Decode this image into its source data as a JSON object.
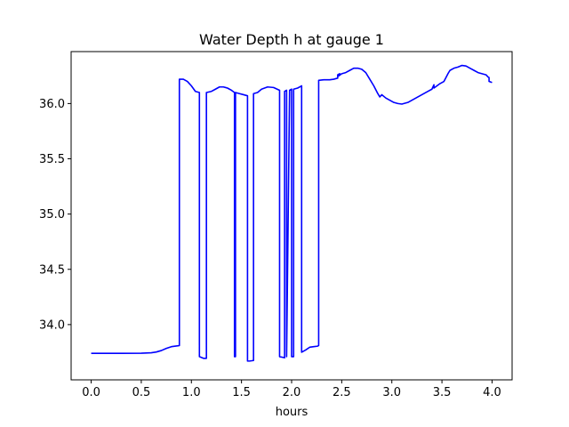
{
  "chart_data": {
    "type": "line",
    "title": "Water Depth h at gauge 1",
    "xlabel": "hours",
    "ylabel": "",
    "xlim": [
      -0.2,
      4.2
    ],
    "ylim": [
      33.5,
      36.47
    ],
    "xticks": [
      0.0,
      0.5,
      1.0,
      1.5,
      2.0,
      2.5,
      3.0,
      3.5,
      4.0
    ],
    "xtick_labels": [
      "0.0",
      "0.5",
      "1.0",
      "1.5",
      "2.0",
      "2.5",
      "3.0",
      "3.5",
      "4.0"
    ],
    "yticks": [
      34.0,
      34.5,
      35.0,
      35.5,
      36.0
    ],
    "ytick_labels": [
      "34.0",
      "34.5",
      "35.0",
      "35.5",
      "36.0"
    ],
    "grid": false,
    "series": [
      {
        "color": "#0000ff",
        "x": [
          0.0,
          0.3,
          0.5,
          0.6,
          0.65,
          0.7,
          0.75,
          0.8,
          0.85,
          0.88,
          0.88,
          0.92,
          0.96,
          1.0,
          1.04,
          1.08,
          1.08,
          1.12,
          1.15,
          1.15,
          1.2,
          1.24,
          1.28,
          1.32,
          1.36,
          1.4,
          1.43,
          1.43,
          1.44,
          1.44,
          1.48,
          1.52,
          1.56,
          1.56,
          1.58,
          1.62,
          1.62,
          1.66,
          1.7,
          1.76,
          1.82,
          1.88,
          1.88,
          1.93,
          1.93,
          1.95,
          1.95,
          1.98,
          2.0,
          2.0,
          2.02,
          2.02,
          2.06,
          2.1,
          2.1,
          2.14,
          2.18,
          2.22,
          2.26,
          2.27,
          2.27,
          2.32,
          2.38,
          2.42,
          2.46,
          2.46,
          2.48,
          2.47,
          2.5,
          2.54,
          2.58,
          2.62,
          2.66,
          2.7,
          2.74,
          2.78,
          2.82,
          2.86,
          2.88,
          2.9,
          2.94,
          2.98,
          3.02,
          3.06,
          3.1,
          3.12,
          3.16,
          3.2,
          3.24,
          3.28,
          3.32,
          3.36,
          3.4,
          3.42,
          3.42,
          3.45,
          3.48,
          3.52,
          3.56,
          3.58,
          3.62,
          3.66,
          3.7,
          3.74,
          3.78,
          3.82,
          3.86,
          3.9,
          3.94,
          3.96,
          3.97,
          3.97,
          4.0
        ],
        "y": [
          33.74,
          33.74,
          33.741,
          33.745,
          33.752,
          33.765,
          33.785,
          33.8,
          33.806,
          33.81,
          36.22,
          36.22,
          36.2,
          36.16,
          36.11,
          36.1,
          33.71,
          33.695,
          33.695,
          36.1,
          36.11,
          36.13,
          36.15,
          36.15,
          36.14,
          36.12,
          36.1,
          33.71,
          33.71,
          36.1,
          36.09,
          36.08,
          36.07,
          33.67,
          33.67,
          33.675,
          36.09,
          36.1,
          36.13,
          36.15,
          36.145,
          36.12,
          33.71,
          33.7,
          36.11,
          36.12,
          33.71,
          36.12,
          36.13,
          33.71,
          33.71,
          36.13,
          36.14,
          36.16,
          33.75,
          33.77,
          33.795,
          33.8,
          33.805,
          33.81,
          36.21,
          36.215,
          36.215,
          36.22,
          36.23,
          36.26,
          36.27,
          36.25,
          36.27,
          36.28,
          36.3,
          36.32,
          36.32,
          36.31,
          36.28,
          36.22,
          36.16,
          36.09,
          36.06,
          36.08,
          36.05,
          36.03,
          36.01,
          36.0,
          35.995,
          36.0,
          36.01,
          36.03,
          36.05,
          36.07,
          36.09,
          36.11,
          36.13,
          36.17,
          36.14,
          36.16,
          36.18,
          36.2,
          36.27,
          36.3,
          36.32,
          36.33,
          36.345,
          36.34,
          36.32,
          36.3,
          36.28,
          36.27,
          36.26,
          36.24,
          36.235,
          36.2,
          36.19
        ]
      }
    ]
  }
}
